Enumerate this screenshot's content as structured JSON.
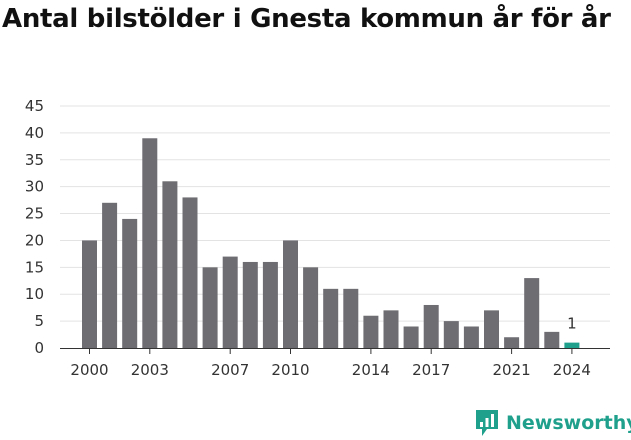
{
  "chart_data": {
    "type": "bar",
    "title": "Antal bilstölder i Gnesta kommun år för år",
    "xlabel": "",
    "ylabel": "",
    "categories": [
      "2000",
      "2001",
      "2002",
      "2003",
      "2004",
      "2005",
      "2006",
      "2007",
      "2008",
      "2009",
      "2010",
      "2011",
      "2012",
      "2013",
      "2014",
      "2015",
      "2016",
      "2017",
      "2018",
      "2019",
      "2020",
      "2021",
      "2022",
      "2023",
      "2024"
    ],
    "x_tick_labels": [
      "2000",
      "2003",
      "2007",
      "2010",
      "2014",
      "2017",
      "2021",
      "2024"
    ],
    "values": [
      20,
      27,
      24,
      39,
      31,
      28,
      15,
      17,
      16,
      16,
      20,
      15,
      11,
      11,
      6,
      7,
      4,
      8,
      5,
      4,
      7,
      2,
      13,
      3,
      1
    ],
    "ylim": [
      0,
      45
    ],
    "yticks": [
      0,
      5,
      10,
      15,
      20,
      25,
      30,
      35,
      40,
      45
    ],
    "grid": true,
    "legend": "none",
    "highlight": {
      "category": "2024",
      "label": "1"
    },
    "colors": {
      "bar": "#6e6d72",
      "highlight": "#1fa08c",
      "grid": "#e3e3e3",
      "axis": "#333333"
    }
  },
  "brand": {
    "name": "Newsworthy",
    "icon": "newsworthy-logo-icon"
  }
}
